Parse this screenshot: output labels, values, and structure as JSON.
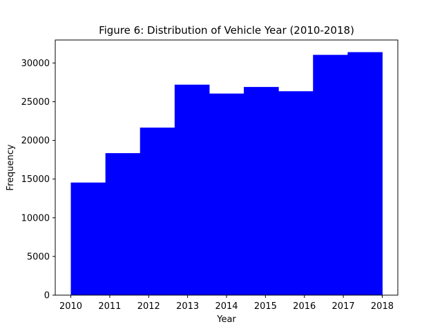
{
  "chart_data": {
    "type": "bar",
    "subtype": "histogram",
    "title": "Figure 6: Distribution of Vehicle Year (2010-2018)",
    "xlabel": "Year",
    "ylabel": "Frequency",
    "color": "#0000ff",
    "bin_edges": [
      2010,
      2010.8889,
      2011.7778,
      2012.6667,
      2013.5556,
      2014.4444,
      2015.3333,
      2016.2222,
      2017.1111,
      2018
    ],
    "values": [
      14550,
      18350,
      21650,
      27200,
      26050,
      26900,
      26350,
      31050,
      31400
    ],
    "xlim": [
      2009.6,
      2018.4
    ],
    "ylim": [
      0,
      32970
    ],
    "x_ticks": [
      2010,
      2011,
      2012,
      2013,
      2014,
      2015,
      2016,
      2017,
      2018
    ],
    "y_ticks": [
      0,
      5000,
      10000,
      15000,
      20000,
      25000,
      30000
    ],
    "grid": false,
    "legend": "none"
  }
}
